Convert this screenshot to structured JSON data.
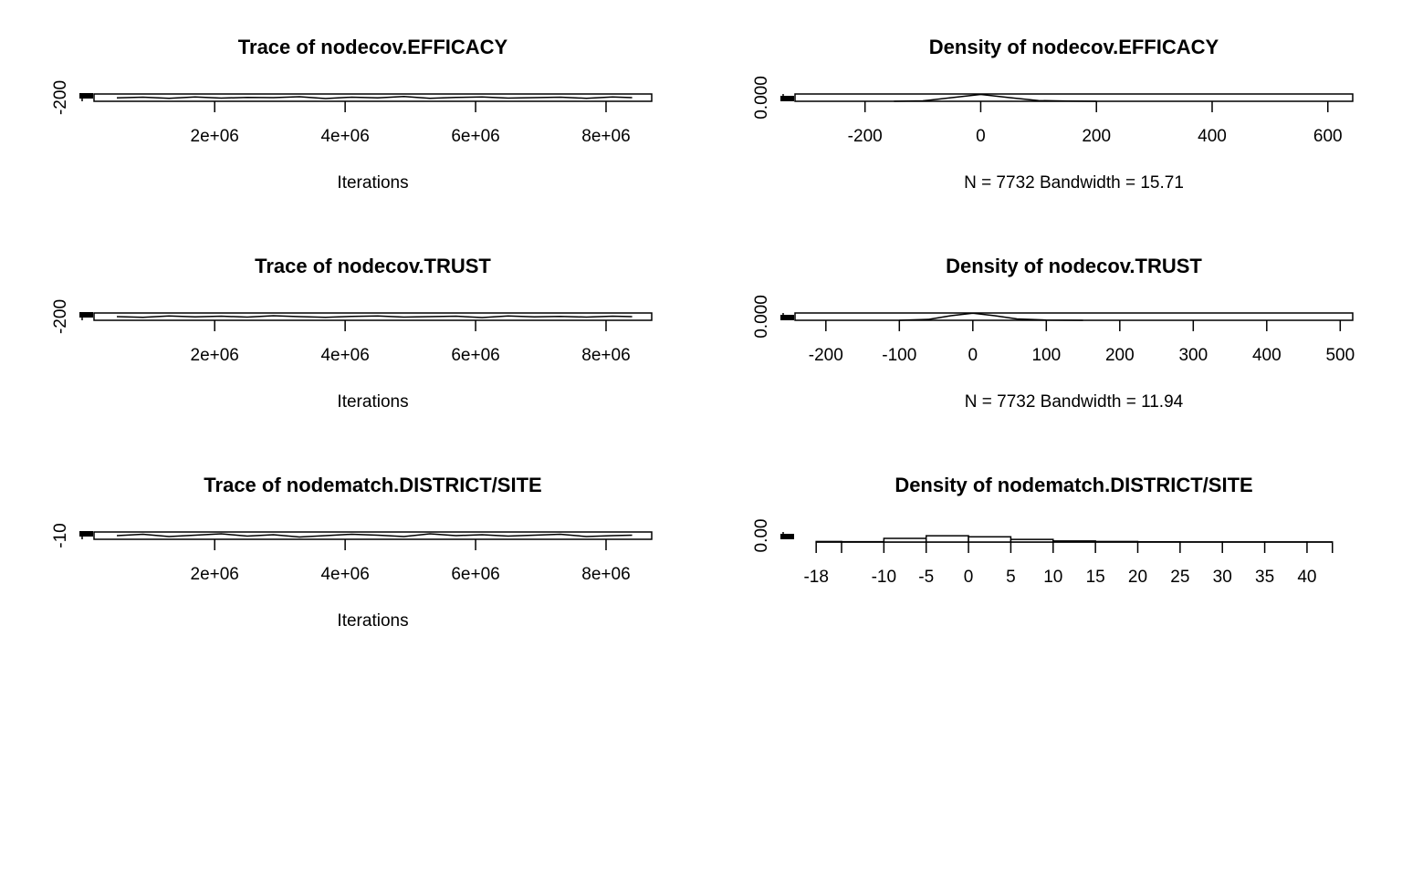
{
  "chart_data": [
    {
      "type": "line",
      "title": "Trace of nodecov.EFFICACY",
      "xlabel": "Iterations",
      "x": [
        500000,
        900000,
        1300000,
        1700000,
        2100000,
        2500000,
        2900000,
        3300000,
        3700000,
        4100000,
        4500000,
        4900000,
        5300000,
        5700000,
        6100000,
        6500000,
        6900000,
        7300000,
        7700000,
        8100000,
        8400000
      ],
      "values": [
        -205,
        -190,
        -215,
        -185,
        -210,
        -195,
        -200,
        -180,
        -220,
        -190,
        -205,
        -175,
        -215,
        -195,
        -185,
        -210,
        -200,
        -190,
        -215,
        -185,
        -200
      ],
      "xlim": [
        150000,
        8700000
      ],
      "xticks": [
        {
          "value": 2000000,
          "label": "2e+06"
        },
        {
          "value": 4000000,
          "label": "4e+06"
        },
        {
          "value": 6000000,
          "label": "6e+06"
        },
        {
          "value": 8000000,
          "label": "8e+06"
        }
      ],
      "ylim": [
        -280,
        -120
      ],
      "yticks": [
        -200
      ]
    },
    {
      "type": "line",
      "title": "Density of nodecov.EFFICACY",
      "xlabel": "N = 7732   Bandwidth = 15.71",
      "x": [
        -150,
        -100,
        -50,
        0,
        50,
        100,
        150,
        200
      ],
      "values": [
        0,
        0.0005,
        0.004,
        0.0075,
        0.004,
        0.0008,
        0.0002,
        0
      ],
      "xlim": [
        -321,
        643
      ],
      "xticks": [
        -200,
        0,
        200,
        400,
        600
      ],
      "ylim": [
        0,
        0.008
      ],
      "yticks": [
        {
          "value": 0,
          "label": "0.000"
        }
      ]
    },
    {
      "type": "line",
      "title": "Trace of nodecov.TRUST",
      "xlabel": "Iterations",
      "x": [
        500000,
        900000,
        1300000,
        1700000,
        2100000,
        2500000,
        2900000,
        3300000,
        3700000,
        4100000,
        4500000,
        4900000,
        5300000,
        5700000,
        6100000,
        6500000,
        6900000,
        7300000,
        7700000,
        8100000,
        8400000
      ],
      "values": [
        -200,
        -215,
        -185,
        -205,
        -190,
        -210,
        -180,
        -200,
        -215,
        -195,
        -185,
        -210,
        -200,
        -190,
        -220,
        -185,
        -205,
        -195,
        -210,
        -190,
        -200
      ],
      "xlim": [
        150000,
        8700000
      ],
      "xticks": [
        {
          "value": 2000000,
          "label": "2e+06"
        },
        {
          "value": 4000000,
          "label": "4e+06"
        },
        {
          "value": 6000000,
          "label": "6e+06"
        },
        {
          "value": 8000000,
          "label": "8e+06"
        }
      ],
      "ylim": [
        -280,
        -120
      ],
      "yticks": [
        -200
      ]
    },
    {
      "type": "line",
      "title": "Density of nodecov.TRUST",
      "xlabel": "N = 7732   Bandwidth = 11.94",
      "x": [
        -100,
        -60,
        -30,
        0,
        30,
        60,
        100,
        150
      ],
      "values": [
        0,
        0.001,
        0.005,
        0.0078,
        0.005,
        0.0015,
        0.0003,
        0
      ],
      "xlim": [
        -242,
        517
      ],
      "xticks": [
        -200,
        -100,
        0,
        100,
        200,
        300,
        400,
        500
      ],
      "ylim": [
        0,
        0.008
      ],
      "yticks": [
        {
          "value": 0,
          "label": "0.000"
        }
      ]
    },
    {
      "type": "line",
      "title": "Trace of nodematch.DISTRICT/SITE",
      "xlabel": "Iterations",
      "x": [
        500000,
        900000,
        1300000,
        1700000,
        2100000,
        2500000,
        2900000,
        3300000,
        3700000,
        4100000,
        4500000,
        4900000,
        5300000,
        5700000,
        6100000,
        6500000,
        6900000,
        7300000,
        7700000,
        8100000,
        8400000
      ],
      "values": [
        -10,
        -7,
        -12,
        -9,
        -6,
        -11,
        -8,
        -13,
        -10,
        -7,
        -9,
        -12,
        -6,
        -10,
        -8,
        -11,
        -9,
        -7,
        -12,
        -10,
        -9
      ],
      "xlim": [
        150000,
        8700000
      ],
      "xticks": [
        {
          "value": 2000000,
          "label": "2e+06"
        },
        {
          "value": 4000000,
          "label": "4e+06"
        },
        {
          "value": 6000000,
          "label": "6e+06"
        },
        {
          "value": 8000000,
          "label": "8e+06"
        }
      ],
      "ylim": [
        -18,
        -2
      ],
      "yticks": [
        -10
      ]
    },
    {
      "type": "histogram",
      "title": "Density of nodematch.DISTRICT/SITE",
      "bins": [
        -18,
        -15,
        -10,
        -5,
        0,
        5,
        10,
        15,
        20,
        25,
        30,
        35,
        40,
        43
      ],
      "values": [
        0.005,
        0.003,
        0.035,
        0.06,
        0.05,
        0.025,
        0.01,
        0.005,
        0.002,
        0.001,
        0.001,
        0.001,
        0.0005
      ],
      "xlim": [
        -20.5,
        45.4
      ],
      "xticks": [
        -18,
        -10,
        -5,
        0,
        5,
        10,
        15,
        20,
        25,
        30,
        35,
        40
      ],
      "ylim": [
        0,
        0.07
      ],
      "yticks": [
        {
          "value": 0,
          "label": "0.00"
        }
      ]
    }
  ]
}
